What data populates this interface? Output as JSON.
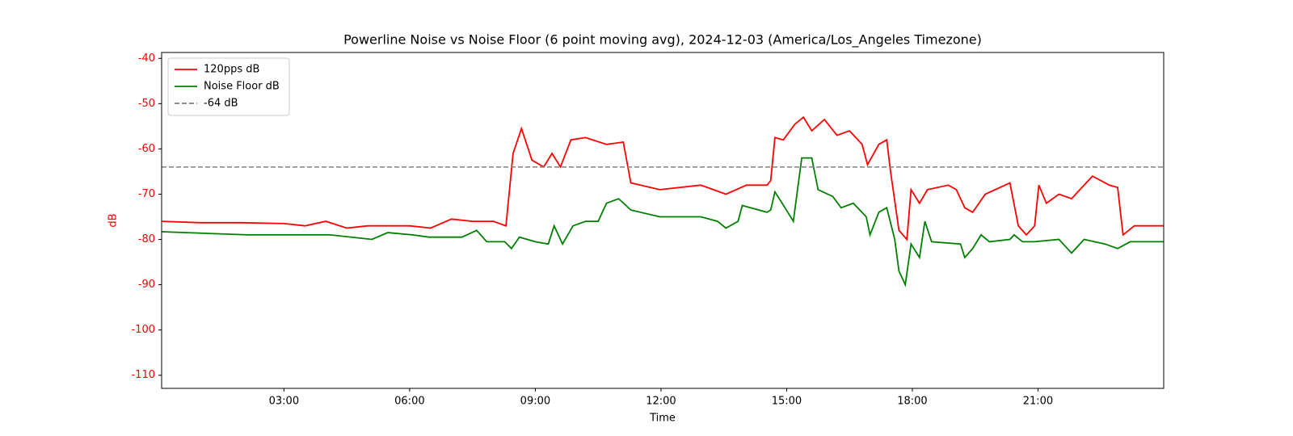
{
  "chart_data": {
    "type": "line",
    "title": "Powerline Noise vs Noise Floor (6 point moving avg), 2024-12-03 (America/Los_Angeles Timezone)",
    "xlabel": "Time",
    "ylabel": "dB",
    "ylabel_color": "#ff0000",
    "xlim": [
      0.08,
      24.0
    ],
    "ylim": [
      -112.9,
      -38.7
    ],
    "xticks": [
      {
        "value": 3,
        "label": "03:00"
      },
      {
        "value": 6,
        "label": "06:00"
      },
      {
        "value": 9,
        "label": "09:00"
      },
      {
        "value": 12,
        "label": "12:00"
      },
      {
        "value": 15,
        "label": "15:00"
      },
      {
        "value": 18,
        "label": "18:00"
      },
      {
        "value": 21,
        "label": "21:00"
      }
    ],
    "yticks": [
      -40,
      -50,
      -60,
      -70,
      -80,
      -90,
      -100,
      -110
    ],
    "legend": "upper left",
    "grid": false,
    "series": [
      {
        "name": "120pps dB",
        "color": "#ff0000",
        "x": [
          0.08,
          1.0,
          2.0,
          3.0,
          3.5,
          4.0,
          4.5,
          5.0,
          6.0,
          6.5,
          7.0,
          7.5,
          8.0,
          8.3,
          8.47,
          8.67,
          8.92,
          9.2,
          9.4,
          9.6,
          9.85,
          10.2,
          10.7,
          11.1,
          11.28,
          11.97,
          12.95,
          13.55,
          14.04,
          14.53,
          14.62,
          14.72,
          14.92,
          15.2,
          15.4,
          15.6,
          15.9,
          16.2,
          16.5,
          16.8,
          16.93,
          17.2,
          17.39,
          17.48,
          17.68,
          17.87,
          17.97,
          18.17,
          18.36,
          18.86,
          19.05,
          19.25,
          19.44,
          19.74,
          20.33,
          20.53,
          20.72,
          20.92,
          21.02,
          21.2,
          21.5,
          21.8,
          22.0,
          22.3,
          22.7,
          22.9,
          23.03,
          23.3,
          23.8,
          24.0
        ],
        "values": [
          -76,
          -76.3,
          -76.3,
          -76.5,
          -77,
          -76,
          -77.5,
          -77,
          -77,
          -77.5,
          -75.5,
          -76,
          -76,
          -77,
          -61,
          -55.5,
          -62.5,
          -64,
          -61,
          -64,
          -58,
          -57.5,
          -59,
          -58.5,
          -67.5,
          -69,
          -68,
          -70,
          -68,
          -68,
          -67,
          -57.5,
          -58,
          -54.5,
          -53,
          -56,
          -53.5,
          -57,
          -56,
          -59,
          -63.5,
          -59,
          -58,
          -65,
          -78,
          -80,
          -69,
          -72,
          -69,
          -68,
          -69,
          -73,
          -74,
          -70,
          -67.5,
          -77,
          -79,
          -77,
          -68,
          -72,
          -70,
          -71,
          -69,
          -66,
          -68,
          -68.5,
          -79,
          -77,
          -77,
          -77
        ]
      },
      {
        "name": "Noise Floor dB",
        "color": "#008000",
        "x": [
          0.08,
          2.14,
          4.1,
          5.1,
          5.48,
          6.07,
          6.46,
          7.25,
          7.6,
          7.84,
          8.27,
          8.43,
          8.62,
          9.0,
          9.31,
          9.45,
          9.65,
          9.9,
          10.2,
          10.5,
          10.7,
          10.99,
          11.28,
          11.97,
          12.95,
          13.35,
          13.55,
          13.84,
          13.94,
          14.53,
          14.62,
          14.72,
          14.96,
          15.16,
          15.36,
          15.6,
          15.75,
          16.1,
          16.3,
          16.59,
          16.9,
          16.99,
          17.2,
          17.39,
          17.58,
          17.68,
          17.83,
          17.97,
          18.17,
          18.3,
          18.46,
          19.15,
          19.25,
          19.44,
          19.64,
          19.84,
          20.33,
          20.43,
          20.63,
          20.92,
          21.5,
          21.7,
          21.8,
          22.1,
          22.6,
          22.9,
          23.2,
          24.0
        ],
        "values": [
          -78.3,
          -79,
          -79,
          -80,
          -78.5,
          -79,
          -79.5,
          -79.5,
          -78,
          -80.5,
          -80.5,
          -82,
          -79.5,
          -80.5,
          -81,
          -77,
          -81,
          -77,
          -76,
          -76,
          -72,
          -71,
          -73.5,
          -75,
          -75,
          -76,
          -77.5,
          -76,
          -72.5,
          -74,
          -73.5,
          -69.5,
          -73,
          -76,
          -62,
          -62,
          -69,
          -70.5,
          -73,
          -72,
          -75,
          -79,
          -74,
          -73,
          -80,
          -87,
          -90,
          -81,
          -84,
          -76,
          -80.5,
          -81,
          -84,
          -82,
          -79,
          -80.5,
          -80,
          -79,
          -80.5,
          -80.5,
          -80,
          -82,
          -83,
          -80,
          -81,
          -82,
          -80.5,
          -80.5
        ]
      }
    ],
    "hline": {
      "name": "-64 dB",
      "value": -64,
      "color": "#808080"
    }
  }
}
